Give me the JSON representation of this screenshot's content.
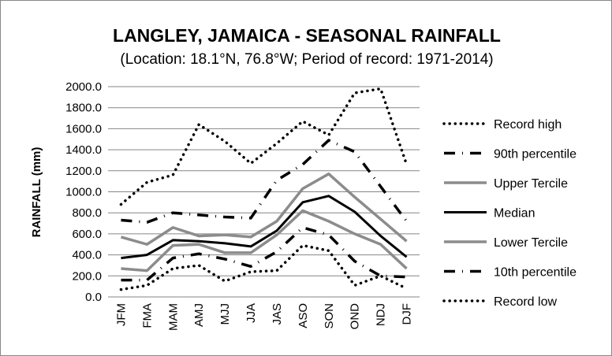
{
  "chart_data": {
    "type": "line",
    "title": "LANGLEY, JAMAICA - SEASONAL RAINFALL",
    "subtitle": "(Location: 18.1°N, 76.8°W; Period of record: 1971-2014)",
    "xlabel": "",
    "ylabel": "RAINFALL (mm)",
    "ylim": [
      0,
      2000
    ],
    "ytick_step": 200,
    "yticks": [
      "0.0",
      "200.0",
      "400.0",
      "600.0",
      "800.0",
      "1000.0",
      "1200.0",
      "1400.0",
      "1600.0",
      "1800.0",
      "2000.0"
    ],
    "grid": true,
    "legend_position": "right",
    "categories": [
      "JFM",
      "FMA",
      "MAM",
      "AMJ",
      "MJJ",
      "JJA",
      "JAS",
      "ASO",
      "SON",
      "OND",
      "NDJ",
      "DJF"
    ],
    "series": [
      {
        "name": "Record high",
        "style": "dotted",
        "color": "#000000",
        "values": [
          880,
          1090,
          1160,
          1640,
          1480,
          1270,
          1460,
          1670,
          1540,
          1940,
          1980,
          1260
        ]
      },
      {
        "name": "90th percentile",
        "style": "dashdot",
        "color": "#000000",
        "values": [
          730,
          710,
          800,
          780,
          760,
          750,
          1110,
          1260,
          1490,
          1380,
          1050,
          720
        ]
      },
      {
        "name": "Upper Tercile",
        "style": "solid",
        "color": "#8c8c8c",
        "values": [
          570,
          500,
          660,
          580,
          590,
          570,
          720,
          1030,
          1170,
          950,
          740,
          530
        ]
      },
      {
        "name": "Median",
        "style": "solid",
        "color": "#000000",
        "values": [
          370,
          400,
          540,
          530,
          510,
          480,
          630,
          900,
          960,
          810,
          580,
          380
        ]
      },
      {
        "name": "Lower Tercile",
        "style": "solid",
        "color": "#8c8c8c",
        "values": [
          270,
          250,
          490,
          500,
          420,
          420,
          590,
          820,
          720,
          600,
          500,
          270
        ]
      },
      {
        "name": "10th percentile",
        "style": "dashdot",
        "color": "#000000",
        "values": [
          160,
          160,
          370,
          410,
          360,
          290,
          430,
          660,
          590,
          340,
          200,
          190
        ]
      },
      {
        "name": "Record low",
        "style": "dotted",
        "color": "#000000",
        "values": [
          70,
          110,
          270,
          300,
          150,
          240,
          250,
          490,
          440,
          110,
          200,
          80
        ]
      }
    ]
  }
}
